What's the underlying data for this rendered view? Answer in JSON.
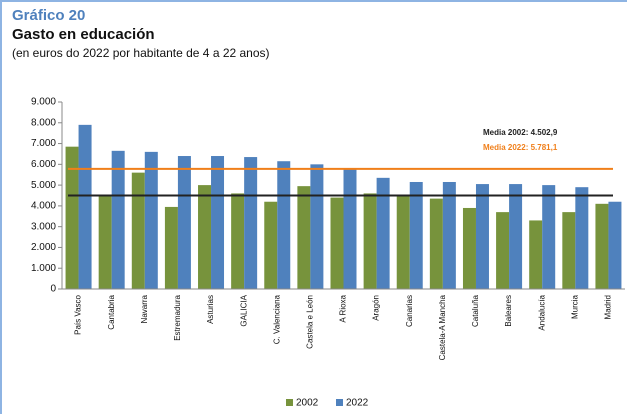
{
  "chart_data": {
    "type": "bar",
    "kicker": "Gráfico 20",
    "title": "Gasto en educación",
    "subtitle": "(en euros do 2022 por habitante de 4 a 22 anos)",
    "categories": [
      "País Vasco",
      "Cantabria",
      "Navarra",
      "Estremadura",
      "Asturias",
      "GALICIA",
      "C. Valenciana",
      "Castela e León",
      "A Rioxa",
      "Aragón",
      "Canarias",
      "Castela-A Mancha",
      "Cataluña",
      "Baleares",
      "Andalucía",
      "Murcia",
      "Madrid"
    ],
    "series": [
      {
        "name": "2002",
        "color": "#77933c",
        "values": [
          6850,
          4500,
          5600,
          3950,
          5000,
          4600,
          4200,
          4950,
          4400,
          4600,
          4500,
          4350,
          3900,
          3700,
          3300,
          3700,
          4100
        ]
      },
      {
        "name": "2022",
        "color": "#4f81bd",
        "values": [
          7900,
          6650,
          6600,
          6400,
          6400,
          6350,
          6150,
          6000,
          5750,
          5350,
          5150,
          5150,
          5050,
          5050,
          5000,
          4900,
          4200
        ]
      }
    ],
    "reference_lines": [
      {
        "value": 4502.9,
        "label": "Media 2002: 4.502,9",
        "color": "#222222"
      },
      {
        "value": 5781.1,
        "label": "Media 2022: 5.781,1",
        "color": "#f07f1a"
      }
    ],
    "ylim": [
      0,
      9000
    ],
    "yticks": [
      0,
      {
        "value": 1000,
        "label": "1.000"
      },
      {
        "value": 2000,
        "label": "2.000"
      },
      {
        "value": 3000,
        "label": "3.000"
      },
      {
        "value": 4000,
        "label": "4.000"
      },
      {
        "value": 5000,
        "label": "5.000"
      },
      {
        "value": 6000,
        "label": "6.000"
      },
      {
        "value": 7000,
        "label": "7.000"
      },
      {
        "value": 8000,
        "label": "8.000"
      },
      {
        "value": 9000,
        "label": "9.000"
      }
    ],
    "legend": "bottom"
  }
}
